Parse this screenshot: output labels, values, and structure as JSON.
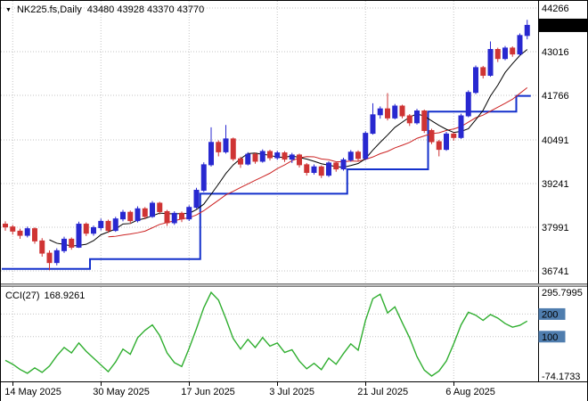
{
  "window": {
    "symbol": "NK225.fs,Daily",
    "ohlc_text": "43480 43928 43370 43770"
  },
  "indicator": {
    "name": "CCI(27)",
    "value": "168.9261"
  },
  "colors": {
    "bull": "#2828d0",
    "bear": "#cf3434",
    "ma_fast": "#000000",
    "ma_slow": "#cc2222",
    "support": "#1330cc",
    "cci_line": "#2fae2f",
    "grid": "#c3c3c3",
    "price_tag_bg": "#000000",
    "price_tag_fg": "#ffffff",
    "level_box_bg": "#4f7dae",
    "level_box_fg": "#ffffff"
  },
  "chart_data": [
    {
      "type": "candlestick",
      "title": "NK225.fs,Daily",
      "ylabel": "",
      "xlabel": "",
      "grid": true,
      "ylim": [
        36385,
        44470
      ],
      "y_ticks": [
        44266,
        43016,
        41766,
        40491,
        39241,
        37991,
        36741
      ],
      "current_price": 43770,
      "x_tick_labels": [
        "14 May 2025",
        "30 May 2025",
        "17 Jun 2025",
        "3 Jul 2025",
        "21 Jul 2025",
        "6 Aug 2025"
      ],
      "x_tick_indices": [
        1,
        13,
        25,
        37,
        49,
        61
      ],
      "ma_fast": 7,
      "ma_slow": 15,
      "ohlc": [
        [
          38080,
          38160,
          37890,
          38000
        ],
        [
          38000,
          38060,
          37780,
          37880
        ],
        [
          37880,
          37950,
          37660,
          37760
        ],
        [
          37760,
          38010,
          37700,
          37950
        ],
        [
          37950,
          37990,
          37520,
          37600
        ],
        [
          37600,
          37680,
          37150,
          37250
        ],
        [
          37250,
          37330,
          36760,
          36980
        ],
        [
          36980,
          37390,
          36900,
          37320
        ],
        [
          37320,
          37720,
          37260,
          37650
        ],
        [
          37650,
          37700,
          37350,
          37420
        ],
        [
          37420,
          38150,
          37400,
          38080
        ],
        [
          38080,
          38130,
          37740,
          37820
        ],
        [
          37820,
          38040,
          37750,
          37980
        ],
        [
          37980,
          38240,
          37900,
          38160
        ],
        [
          38160,
          38210,
          37830,
          37900
        ],
        [
          37900,
          38290,
          37860,
          38230
        ],
        [
          38230,
          38490,
          38160,
          38420
        ],
        [
          38420,
          38470,
          38090,
          38180
        ],
        [
          38180,
          38590,
          38130,
          38520
        ],
        [
          38520,
          38570,
          38220,
          38300
        ],
        [
          38300,
          38740,
          38260,
          38680
        ],
        [
          38680,
          38720,
          38360,
          38440
        ],
        [
          38440,
          38490,
          38030,
          38120
        ],
        [
          38120,
          38450,
          38060,
          38390
        ],
        [
          38390,
          38440,
          38140,
          38230
        ],
        [
          38230,
          38620,
          38170,
          38560
        ],
        [
          38560,
          39120,
          38520,
          39050
        ],
        [
          39050,
          39850,
          39000,
          39780
        ],
        [
          39780,
          40850,
          39730,
          40420
        ],
        [
          40420,
          40480,
          40020,
          40150
        ],
        [
          40150,
          40920,
          40100,
          40520
        ],
        [
          40520,
          40560,
          39890,
          39950
        ],
        [
          39950,
          40010,
          39690,
          39800
        ],
        [
          39800,
          40140,
          39760,
          40080
        ],
        [
          40080,
          40130,
          39810,
          39880
        ],
        [
          39880,
          40220,
          39840,
          40160
        ],
        [
          40160,
          40210,
          39900,
          39980
        ],
        [
          39980,
          40180,
          39920,
          40120
        ],
        [
          40120,
          40170,
          39860,
          39940
        ],
        [
          39940,
          40120,
          39830,
          40060
        ],
        [
          40060,
          40100,
          39700,
          39780
        ],
        [
          39780,
          39830,
          39470,
          39560
        ],
        [
          39560,
          39790,
          39500,
          39720
        ],
        [
          39720,
          39760,
          39400,
          39480
        ],
        [
          39480,
          39880,
          39430,
          39830
        ],
        [
          39830,
          39880,
          39580,
          39660
        ],
        [
          39660,
          39980,
          39610,
          39920
        ],
        [
          39920,
          40200,
          39870,
          40140
        ],
        [
          40140,
          40190,
          39880,
          39960
        ],
        [
          39960,
          40740,
          39910,
          40680
        ],
        [
          40680,
          41540,
          40640,
          41210
        ],
        [
          41210,
          41450,
          41100,
          41380
        ],
        [
          41380,
          41830,
          41050,
          41120
        ],
        [
          41120,
          41520,
          41080,
          41460
        ],
        [
          41460,
          41500,
          41110,
          41180
        ],
        [
          41180,
          41230,
          40890,
          40980
        ],
        [
          40980,
          41380,
          40930,
          41320
        ],
        [
          41320,
          41360,
          40690,
          40760
        ],
        [
          40760,
          40810,
          40370,
          40440
        ],
        [
          40440,
          40490,
          40020,
          40220
        ],
        [
          40220,
          40720,
          40180,
          40660
        ],
        [
          40660,
          40710,
          40470,
          40560
        ],
        [
          40560,
          41240,
          40520,
          41180
        ],
        [
          41180,
          41910,
          41140,
          41850
        ],
        [
          41850,
          42620,
          41800,
          42560
        ],
        [
          42560,
          42610,
          42250,
          42340
        ],
        [
          42340,
          43310,
          42300,
          43080
        ],
        [
          43080,
          43130,
          42720,
          42820
        ],
        [
          42820,
          43180,
          42770,
          43120
        ],
        [
          43120,
          43170,
          42870,
          42950
        ],
        [
          42950,
          43540,
          42900,
          43480
        ],
        [
          43480,
          43928,
          43370,
          43770
        ]
      ],
      "support_line": [
        36800,
        36800,
        36800,
        36800,
        36800,
        36800,
        36800,
        36800,
        36800,
        36800,
        36800,
        36800,
        37080,
        37080,
        37080,
        37080,
        37080,
        37080,
        37080,
        37080,
        37080,
        37080,
        37080,
        37080,
        37080,
        37080,
        37080,
        38950,
        38950,
        38950,
        38950,
        38950,
        38950,
        38950,
        38950,
        38950,
        38950,
        38950,
        38950,
        38950,
        38950,
        38950,
        38950,
        38950,
        38950,
        38950,
        38950,
        39650,
        39650,
        39650,
        39650,
        39650,
        39650,
        39650,
        39650,
        39650,
        39650,
        39650,
        41300,
        41300,
        41300,
        41300,
        41300,
        41300,
        41300,
        41300,
        41300,
        41300,
        41300,
        41300,
        41750,
        41750
      ]
    },
    {
      "type": "line",
      "name": "CCI(27)",
      "current_value": 168.9261,
      "grid": true,
      "ylim": [
        -98,
        320
      ],
      "scale_max": 295.7995,
      "scale_min": -74.1733,
      "levels": [
        200,
        100
      ],
      "values": [
        -5,
        -22,
        -45,
        -62,
        -38,
        -58,
        -30,
        15,
        52,
        28,
        72,
        35,
        5,
        -25,
        -55,
        -12,
        45,
        22,
        95,
        128,
        152,
        105,
        28,
        -15,
        -32,
        48,
        135,
        228,
        295.7995,
        262,
        180,
        92,
        45,
        88,
        52,
        96,
        58,
        72,
        30,
        42,
        -8,
        -42,
        -18,
        -46,
        5,
        -22,
        25,
        68,
        40,
        172,
        268,
        288,
        205,
        232,
        162,
        95,
        12,
        -48,
        -74.1733,
        -52,
        -8,
        68,
        152,
        208,
        195,
        172,
        198,
        182,
        158,
        142,
        150,
        168.9261
      ]
    }
  ]
}
